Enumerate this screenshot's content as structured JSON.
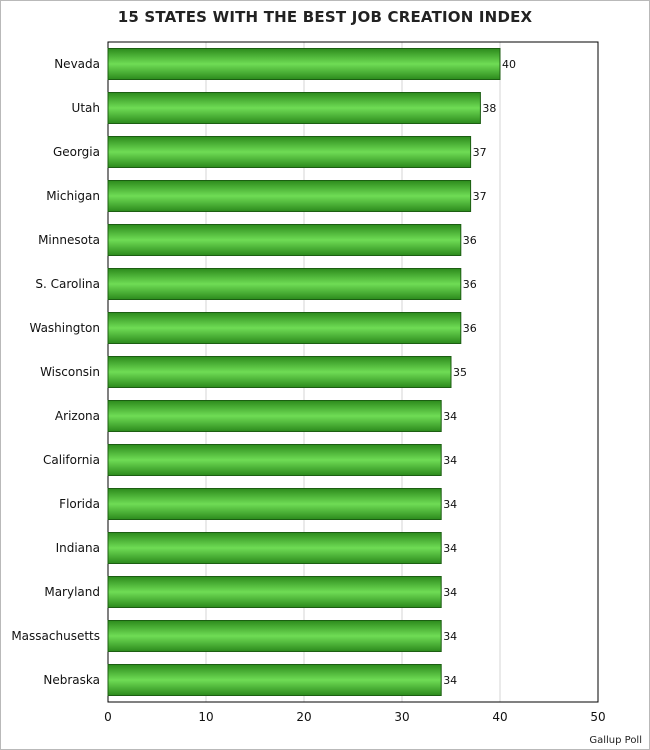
{
  "chart_data": {
    "type": "bar",
    "orientation": "horizontal",
    "title": "15 STATES WITH THE BEST JOB CREATION INDEX",
    "xlabel": "",
    "ylabel": "",
    "categories": [
      "Nevada",
      "Utah",
      "Georgia",
      "Michigan",
      "Minnesota",
      "S. Carolina",
      "Washington",
      "Wisconsin",
      "Arizona",
      "California",
      "Florida",
      "Indiana",
      "Maryland",
      "Massachusetts",
      "Nebraska"
    ],
    "values": [
      40,
      38,
      37,
      37,
      36,
      36,
      36,
      35,
      34,
      34,
      34,
      34,
      34,
      34,
      34
    ],
    "xlim": [
      0,
      50
    ],
    "x_ticks": [
      0,
      10,
      20,
      30,
      40,
      50
    ],
    "grid": true,
    "legend": "none",
    "bar_color": "#2c8a1c",
    "bar_highlight": "#6fdc55",
    "bar_edge": "#1c5e12",
    "grid_color": "#d6d6d6",
    "source": "Gallup Poll"
  }
}
